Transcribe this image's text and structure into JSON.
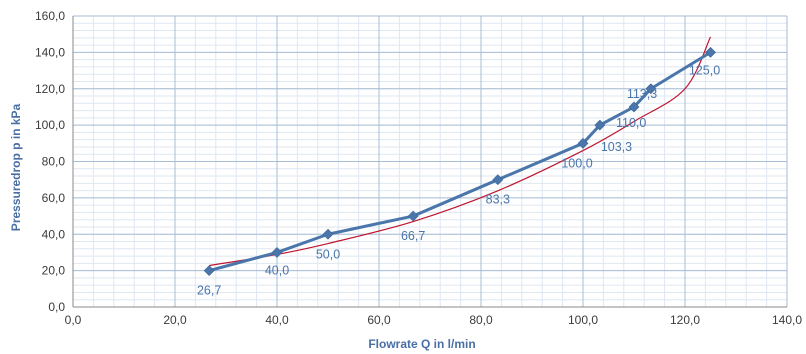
{
  "chart_data": {
    "type": "line",
    "xlabel": "Flowrate Q in l/min",
    "ylabel": "Pressuredrop p in kPa",
    "xlim": [
      0,
      140
    ],
    "ylim": [
      0,
      160
    ],
    "x_ticks": [
      0,
      20,
      40,
      60,
      80,
      100,
      120,
      140
    ],
    "y_ticks": [
      0,
      20,
      40,
      60,
      80,
      100,
      120,
      140,
      160
    ],
    "x_tick_labels": [
      "0,0",
      "20,0",
      "40,0",
      "60,0",
      "80,0",
      "100,0",
      "120,0",
      "140,0"
    ],
    "y_tick_labels": [
      "0,0",
      "20,0",
      "40,0",
      "60,0",
      "80,0",
      "100,0",
      "120,0",
      "140,0",
      "160,0"
    ],
    "grid": true,
    "minor_grid": true,
    "series": [
      {
        "color": "#4a76ab",
        "marker": "diamond",
        "x": [
          26.7,
          40.0,
          50.0,
          66.7,
          83.3,
          100.0,
          103.3,
          110.0,
          113.3,
          125.0
        ],
        "y": [
          20,
          30,
          40,
          50,
          70,
          90,
          100,
          110,
          120,
          140
        ],
        "point_labels": [
          "26,7",
          "40,0",
          "50,0",
          "66,7",
          "83,3",
          "100,0",
          "103,3",
          "110,0",
          "113,3",
          "125,0"
        ]
      },
      {
        "color": "#c0152f",
        "style": "trendline",
        "x": [
          26.7,
          40,
          50,
          66.7,
          83.3,
          100,
          110,
          120,
          125
        ],
        "y": [
          22.8,
          28.9,
          34.9,
          47.0,
          63.9,
          86.0,
          102.0,
          120.0,
          148.5
        ]
      }
    ]
  }
}
